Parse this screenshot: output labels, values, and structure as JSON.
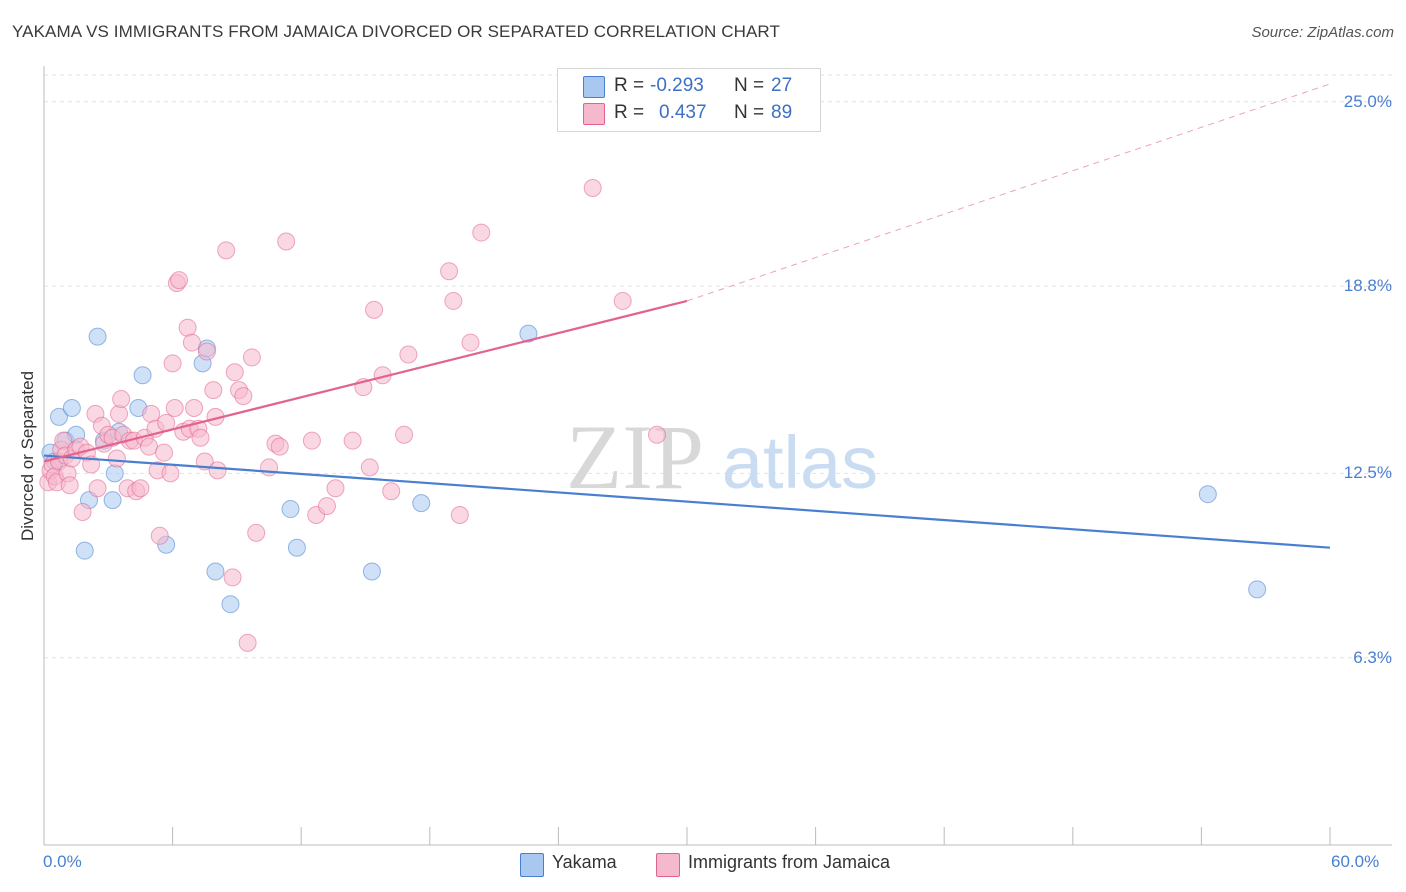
{
  "title": "YAKAMA VS IMMIGRANTS FROM JAMAICA DIVORCED OR SEPARATED CORRELATION CHART",
  "source": "Source: ZipAtlas.com",
  "watermark": {
    "zip": "ZIP",
    "atlas": "atlas"
  },
  "legend": {
    "rows": [
      {
        "r_label": "R =",
        "r_value": "-0.293",
        "n_label": "N =",
        "n_value": "27",
        "color": "#a8c8f0"
      },
      {
        "r_label": "R =",
        "r_value": "0.437",
        "n_label": "N =",
        "n_value": "89",
        "color": "#f5b8cc"
      }
    ]
  },
  "bottom_legend": [
    {
      "label": "Yakama",
      "color": "#a8c8f0"
    },
    {
      "label": "Immigrants from Jamaica",
      "color": "#f5b8cc"
    }
  ],
  "chart_data": {
    "type": "scatter",
    "title": "YAKAMA VS IMMIGRANTS FROM JAMAICA DIVORCED OR SEPARATED CORRELATION CHART",
    "xlabel": "",
    "ylabel": "Divorced or Separated",
    "xlim": [
      0,
      60
    ],
    "ylim": [
      0,
      25.9
    ],
    "x_tick_labels": [
      "0.0%",
      "60.0%"
    ],
    "y_ticks": [
      6.3,
      12.5,
      18.8,
      25.0
    ],
    "y_tick_labels": [
      "6.3%",
      "12.5%",
      "18.8%",
      "25.0%"
    ],
    "grid": true,
    "series": [
      {
        "name": "Yakama",
        "color": "#4a7fd0",
        "fill": "#a8c8f0",
        "trend": {
          "x": [
            0,
            60
          ],
          "y": [
            13.1,
            10.0
          ],
          "dashed_after": null
        },
        "points": [
          [
            0.3,
            13.2
          ],
          [
            0.5,
            12.9
          ],
          [
            0.7,
            14.4
          ],
          [
            1.0,
            13.6
          ],
          [
            1.3,
            14.7
          ],
          [
            1.5,
            13.8
          ],
          [
            1.9,
            9.9
          ],
          [
            2.1,
            11.6
          ],
          [
            2.5,
            17.1
          ],
          [
            2.8,
            13.6
          ],
          [
            3.2,
            11.6
          ],
          [
            3.3,
            12.5
          ],
          [
            3.5,
            13.9
          ],
          [
            4.4,
            14.7
          ],
          [
            4.6,
            15.8
          ],
          [
            5.7,
            10.1
          ],
          [
            7.4,
            16.2
          ],
          [
            7.6,
            16.7
          ],
          [
            8.0,
            9.2
          ],
          [
            8.7,
            8.1
          ],
          [
            11.5,
            11.3
          ],
          [
            11.8,
            10.0
          ],
          [
            15.3,
            9.2
          ],
          [
            17.6,
            11.5
          ],
          [
            22.6,
            17.2
          ],
          [
            54.3,
            11.8
          ],
          [
            56.6,
            8.6
          ]
        ]
      },
      {
        "name": "Immigrants from Jamaica",
        "color": "#e0648f",
        "fill": "#f5b8cc",
        "trend": {
          "x": [
            0,
            30
          ],
          "y": [
            12.9,
            18.3
          ],
          "dashed_to": [
            60,
            25.6
          ]
        },
        "points": [
          [
            0.2,
            12.2
          ],
          [
            0.3,
            12.6
          ],
          [
            0.4,
            12.8
          ],
          [
            0.5,
            12.4
          ],
          [
            0.6,
            12.2
          ],
          [
            0.7,
            12.9
          ],
          [
            0.8,
            13.3
          ],
          [
            0.9,
            13.6
          ],
          [
            1.0,
            13.1
          ],
          [
            1.1,
            12.5
          ],
          [
            1.2,
            12.1
          ],
          [
            1.3,
            13.0
          ],
          [
            1.5,
            13.3
          ],
          [
            1.7,
            13.4
          ],
          [
            1.8,
            11.2
          ],
          [
            2.0,
            13.2
          ],
          [
            2.2,
            12.8
          ],
          [
            2.4,
            14.5
          ],
          [
            2.5,
            12.0
          ],
          [
            2.7,
            14.1
          ],
          [
            2.8,
            13.5
          ],
          [
            3.0,
            13.8
          ],
          [
            3.2,
            13.7
          ],
          [
            3.4,
            13.0
          ],
          [
            3.5,
            14.5
          ],
          [
            3.6,
            15.0
          ],
          [
            3.7,
            13.8
          ],
          [
            3.9,
            12.0
          ],
          [
            4.0,
            13.6
          ],
          [
            4.2,
            13.6
          ],
          [
            4.3,
            11.9
          ],
          [
            4.5,
            12.0
          ],
          [
            4.7,
            13.7
          ],
          [
            4.9,
            13.4
          ],
          [
            5.0,
            14.5
          ],
          [
            5.2,
            14.0
          ],
          [
            5.3,
            12.6
          ],
          [
            5.4,
            10.4
          ],
          [
            5.6,
            13.2
          ],
          [
            5.7,
            14.2
          ],
          [
            5.9,
            12.5
          ],
          [
            6.0,
            16.2
          ],
          [
            6.1,
            14.7
          ],
          [
            6.2,
            18.9
          ],
          [
            6.3,
            19.0
          ],
          [
            6.5,
            13.9
          ],
          [
            6.7,
            17.4
          ],
          [
            6.8,
            14.0
          ],
          [
            6.9,
            16.9
          ],
          [
            7.0,
            14.7
          ],
          [
            7.2,
            14.0
          ],
          [
            7.3,
            13.7
          ],
          [
            7.5,
            12.9
          ],
          [
            7.6,
            16.6
          ],
          [
            7.9,
            15.3
          ],
          [
            8.0,
            14.4
          ],
          [
            8.1,
            12.6
          ],
          [
            8.5,
            20.0
          ],
          [
            8.8,
            9.0
          ],
          [
            8.9,
            15.9
          ],
          [
            9.1,
            15.3
          ],
          [
            9.3,
            15.1
          ],
          [
            9.5,
            6.8
          ],
          [
            9.7,
            16.4
          ],
          [
            9.9,
            10.5
          ],
          [
            10.5,
            12.7
          ],
          [
            10.8,
            13.5
          ],
          [
            11.0,
            13.4
          ],
          [
            11.3,
            20.3
          ],
          [
            12.5,
            13.6
          ],
          [
            12.7,
            11.1
          ],
          [
            13.2,
            11.4
          ],
          [
            13.6,
            12.0
          ],
          [
            14.4,
            13.6
          ],
          [
            14.9,
            15.4
          ],
          [
            15.2,
            12.7
          ],
          [
            15.4,
            18.0
          ],
          [
            15.8,
            15.8
          ],
          [
            16.2,
            11.9
          ],
          [
            16.8,
            13.8
          ],
          [
            17.0,
            16.5
          ],
          [
            18.9,
            19.3
          ],
          [
            19.1,
            18.3
          ],
          [
            19.4,
            11.1
          ],
          [
            19.9,
            16.9
          ],
          [
            20.4,
            20.6
          ],
          [
            25.6,
            22.1
          ],
          [
            27.0,
            18.3
          ],
          [
            28.6,
            13.8
          ]
        ]
      }
    ]
  }
}
